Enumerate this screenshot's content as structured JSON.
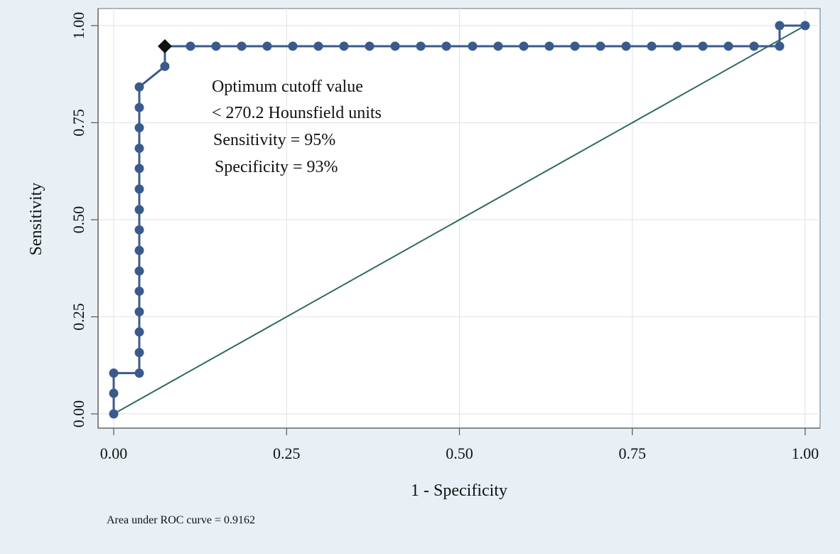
{
  "chart_data": {
    "type": "line",
    "title": "",
    "xlabel": "1 - Specificity",
    "ylabel": "Sensitivity",
    "xlim": [
      0,
      1
    ],
    "ylim": [
      0,
      1
    ],
    "grid": true,
    "x_ticks": [
      "0.00",
      "0.25",
      "0.50",
      "0.75",
      "1.00"
    ],
    "y_ticks": [
      "0.00",
      "0.25",
      "0.50",
      "0.75",
      "1.00"
    ],
    "annotations": [
      "Optimum cutoff value",
      "< 270.2 Hounsfield units",
      "Sensitivity = 95%",
      "Specificity = 93%"
    ],
    "note": "Area under ROC curve = 0.9162",
    "colors": {
      "curve": "#3a5a8c",
      "reference_line": "#2f6b63",
      "optimum_marker": "#111111",
      "background": "#e9f0f5",
      "plot_background": "#ffffff",
      "grid": "#e3e7ea"
    },
    "series": [
      {
        "x": [
          0,
          0,
          0,
          0.037,
          0.037,
          0.037,
          0.037,
          0.037,
          0.037,
          0.037,
          0.037,
          0.037,
          0.037,
          0.037,
          0.037,
          0.037,
          0.037,
          0.037,
          0.074,
          0.074,
          0.111,
          0.148,
          0.185,
          0.222,
          0.259,
          0.296,
          0.333,
          0.37,
          0.407,
          0.444,
          0.481,
          0.519,
          0.556,
          0.593,
          0.63,
          0.667,
          0.704,
          0.741,
          0.778,
          0.815,
          0.852,
          0.889,
          0.926,
          0.963,
          0.963,
          1.0
        ],
        "y": [
          0,
          0.053,
          0.105,
          0.105,
          0.158,
          0.211,
          0.263,
          0.316,
          0.368,
          0.421,
          0.474,
          0.526,
          0.579,
          0.632,
          0.684,
          0.737,
          0.789,
          0.842,
          0.895,
          0.947,
          0.947,
          0.947,
          0.947,
          0.947,
          0.947,
          0.947,
          0.947,
          0.947,
          0.947,
          0.947,
          0.947,
          0.947,
          0.947,
          0.947,
          0.947,
          0.947,
          0.947,
          0.947,
          0.947,
          0.947,
          0.947,
          0.947,
          0.947,
          0.947,
          1.0,
          1.0
        ]
      }
    ],
    "reference_line": {
      "x": [
        0,
        1
      ],
      "y": [
        0,
        1
      ]
    },
    "optimum_point": {
      "x": 0.074,
      "y": 0.947
    }
  }
}
